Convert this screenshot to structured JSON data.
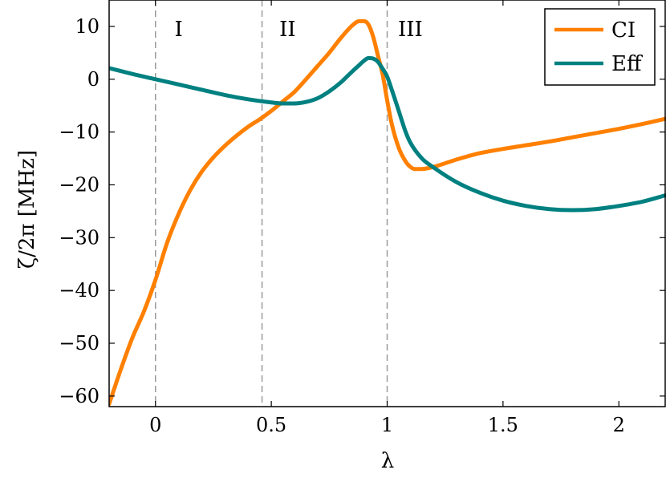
{
  "chart_data": {
    "type": "line",
    "title": "",
    "xlabel": "λ",
    "ylabel": "ζ/2π  [MHz]",
    "xlim": [
      -0.2,
      2.2
    ],
    "ylim": [
      -62,
      15
    ],
    "xticks": [
      0,
      0.5,
      1,
      1.5,
      2
    ],
    "xtick_labels": [
      "0",
      "0.5",
      "1",
      "1.5",
      "2"
    ],
    "yticks": [
      10,
      0,
      -10,
      -20,
      -30,
      -40,
      -50,
      -60
    ],
    "ytick_labels": [
      "10",
      "0",
      "−10",
      "−20",
      "−30",
      "−40",
      "−50",
      "−60"
    ],
    "grid": false,
    "legend_position": "top-right",
    "vlines": [
      0,
      0.46,
      1
    ],
    "regions": [
      {
        "label": "I",
        "x": 0.1
      },
      {
        "label": "II",
        "x": 0.57
      },
      {
        "label": "III",
        "x": 1.1
      }
    ],
    "series": [
      {
        "name": "CI",
        "color": "#ff8000",
        "x": [
          -0.2,
          -0.15,
          -0.1,
          -0.05,
          0,
          0.05,
          0.1,
          0.15,
          0.2,
          0.25,
          0.3,
          0.35,
          0.4,
          0.45,
          0.5,
          0.55,
          0.6,
          0.65,
          0.7,
          0.75,
          0.8,
          0.85,
          0.88,
          0.9,
          0.92,
          0.94,
          0.96,
          0.98,
          1.0,
          1.02,
          1.05,
          1.08,
          1.1,
          1.12,
          1.15,
          1.2,
          1.3,
          1.4,
          1.5,
          1.6,
          1.7,
          1.8,
          1.9,
          2.0,
          2.1,
          2.2
        ],
        "y": [
          -61.5,
          -55,
          -49,
          -44,
          -38,
          -31,
          -25.5,
          -21,
          -17.5,
          -14.8,
          -12.6,
          -10.7,
          -9,
          -7.6,
          -6,
          -4.2,
          -2.4,
          0,
          2.5,
          5,
          7.8,
          10.2,
          11,
          11,
          10.3,
          8,
          4.5,
          1,
          -4,
          -8.5,
          -13,
          -15.6,
          -16.6,
          -17,
          -17,
          -16.6,
          -15.2,
          -14,
          -13.2,
          -12.5,
          -11.8,
          -11,
          -10.2,
          -9.4,
          -8.5,
          -7.5
        ]
      },
      {
        "name": "Eff",
        "color": "#008080",
        "x": [
          -0.2,
          -0.1,
          0,
          0.1,
          0.2,
          0.3,
          0.4,
          0.5,
          0.55,
          0.6,
          0.65,
          0.7,
          0.75,
          0.8,
          0.85,
          0.88,
          0.9,
          0.92,
          0.94,
          0.96,
          0.98,
          1.0,
          1.02,
          1.05,
          1.08,
          1.1,
          1.15,
          1.2,
          1.3,
          1.4,
          1.5,
          1.6,
          1.7,
          1.8,
          1.9,
          2.0,
          2.1,
          2.2
        ],
        "y": [
          2.1,
          1,
          0,
          -1,
          -2,
          -3,
          -3.8,
          -4.4,
          -4.6,
          -4.6,
          -4.3,
          -3.6,
          -2.3,
          -0.6,
          1.5,
          2.7,
          3.5,
          4,
          3.9,
          3.3,
          2,
          0.5,
          -2,
          -6,
          -10,
          -12,
          -15,
          -16.7,
          -19.5,
          -21.5,
          -23,
          -24,
          -24.6,
          -24.8,
          -24.6,
          -24,
          -23.2,
          -22
        ]
      }
    ]
  }
}
